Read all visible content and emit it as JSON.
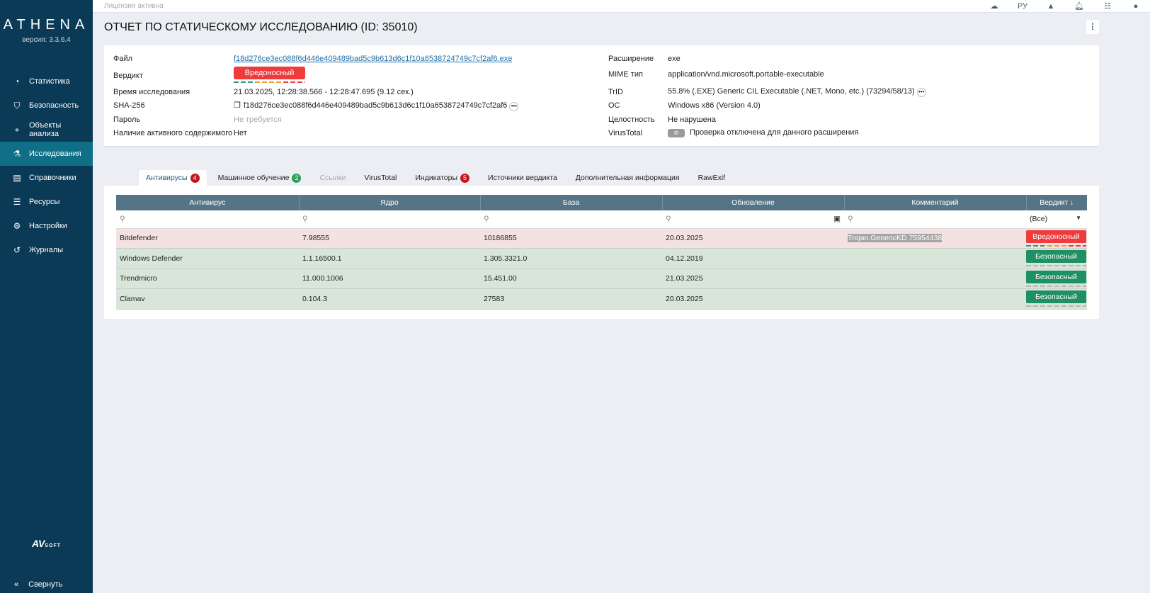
{
  "sidebar": {
    "logo": "ATHENA",
    "version": "версия: 3.3.6.4",
    "items": [
      {
        "label": "Статистика",
        "icon": "pie-chart-icon"
      },
      {
        "label": "Безопасность",
        "icon": "shield-icon"
      },
      {
        "label": "Объекты анализа",
        "icon": "crosshair-icon"
      },
      {
        "label": "Исследования",
        "icon": "flask-icon",
        "active": true
      },
      {
        "label": "Справочники",
        "icon": "book-icon"
      },
      {
        "label": "Ресурсы",
        "icon": "server-icon"
      },
      {
        "label": "Настройки",
        "icon": "gear-icon"
      },
      {
        "label": "Журналы",
        "icon": "history-icon"
      }
    ],
    "brand": "AV",
    "brand_suffix": "SOFT",
    "collapse": "Свернуть"
  },
  "topbar": {
    "license": "Лицензия активна",
    "lang": "РУ"
  },
  "page_title": "ОТЧЕТ ПО СТАТИЧЕСКОМУ ИССЛЕДОВАНИЮ (ID: 35010)",
  "info": {
    "file_label": "Файл",
    "file": "f18d276ce3ec088f6d446e409489bad5c9b613d6c1f10a6538724749c7cf2af6.exe",
    "verdict_label": "Вердикт",
    "verdict": "Вредоносный",
    "time_label": "Время исследования",
    "time": "21.03.2025, 12:28:38.566 - 12:28:47.695 (9.12 сек.)",
    "sha_label": "SHA-256",
    "sha": "f18d276ce3ec088f6d446e409489bad5c9b613d6c1f10a6538724749c7cf2af6",
    "password_label": "Пароль",
    "password": "Не требуется",
    "active_label": "Наличие активного содержимого",
    "active": "Нет",
    "ext_label": "Расширение",
    "ext": "exe",
    "mime_label": "MIME тип",
    "mime": "application/vnd.microsoft.portable-executable",
    "trid_label": "TrID",
    "trid": "55.8% (.EXE) Generic CIL Executable (.NET, Mono, etc.) (73294/58/13)",
    "os_label": "ОС",
    "os": "Windows x86 (Version 4.0)",
    "integrity_label": "Целостность",
    "integrity": "Не нарушена",
    "vt_label": "VirusTotal",
    "vt": "Проверка отключена для данного расширения"
  },
  "tabs": [
    {
      "label": "Антивирусы",
      "count": "4",
      "active": true
    },
    {
      "label": "Машинное обучение",
      "count": "2"
    },
    {
      "label": "Ссылки",
      "disabled": true
    },
    {
      "label": "VirusTotal"
    },
    {
      "label": "Индикаторы",
      "count": "5"
    },
    {
      "label": "Источники вердикта"
    },
    {
      "label": "Дополнительная информация"
    },
    {
      "label": "RawExif"
    }
  ],
  "table": {
    "headers": [
      "Антивирус",
      "Ядро",
      "База",
      "Обновление",
      "Комментарий",
      "Вердикт ↓"
    ],
    "filter_select": "(Все)",
    "rows": [
      {
        "av": "Bitdefender",
        "engine": "7.98555",
        "db": "10186855",
        "updated": "20.03.2025",
        "comment": "Trojan.GenericKD.75954438",
        "verdict": "Вредоносный"
      },
      {
        "av": "Windows Defender",
        "engine": "1.1.16500.1",
        "db": "1.305.3321.0",
        "updated": "04.12.2019",
        "comment": "",
        "verdict": "Безопасный"
      },
      {
        "av": "Trendmicro",
        "engine": "11.000.1006",
        "db": "15.451.00",
        "updated": "21.03.2025",
        "comment": "",
        "verdict": "Безопасный"
      },
      {
        "av": "Clamav",
        "engine": "0.104.3",
        "db": "27583",
        "updated": "20.03.2025",
        "comment": "",
        "verdict": "Безопасный"
      }
    ]
  },
  "colors": {
    "sidebar": "#0b3a56",
    "active": "#0e6f86",
    "malicious": "#ef3b3b",
    "safe": "#1f8f64",
    "header": "#557587"
  }
}
